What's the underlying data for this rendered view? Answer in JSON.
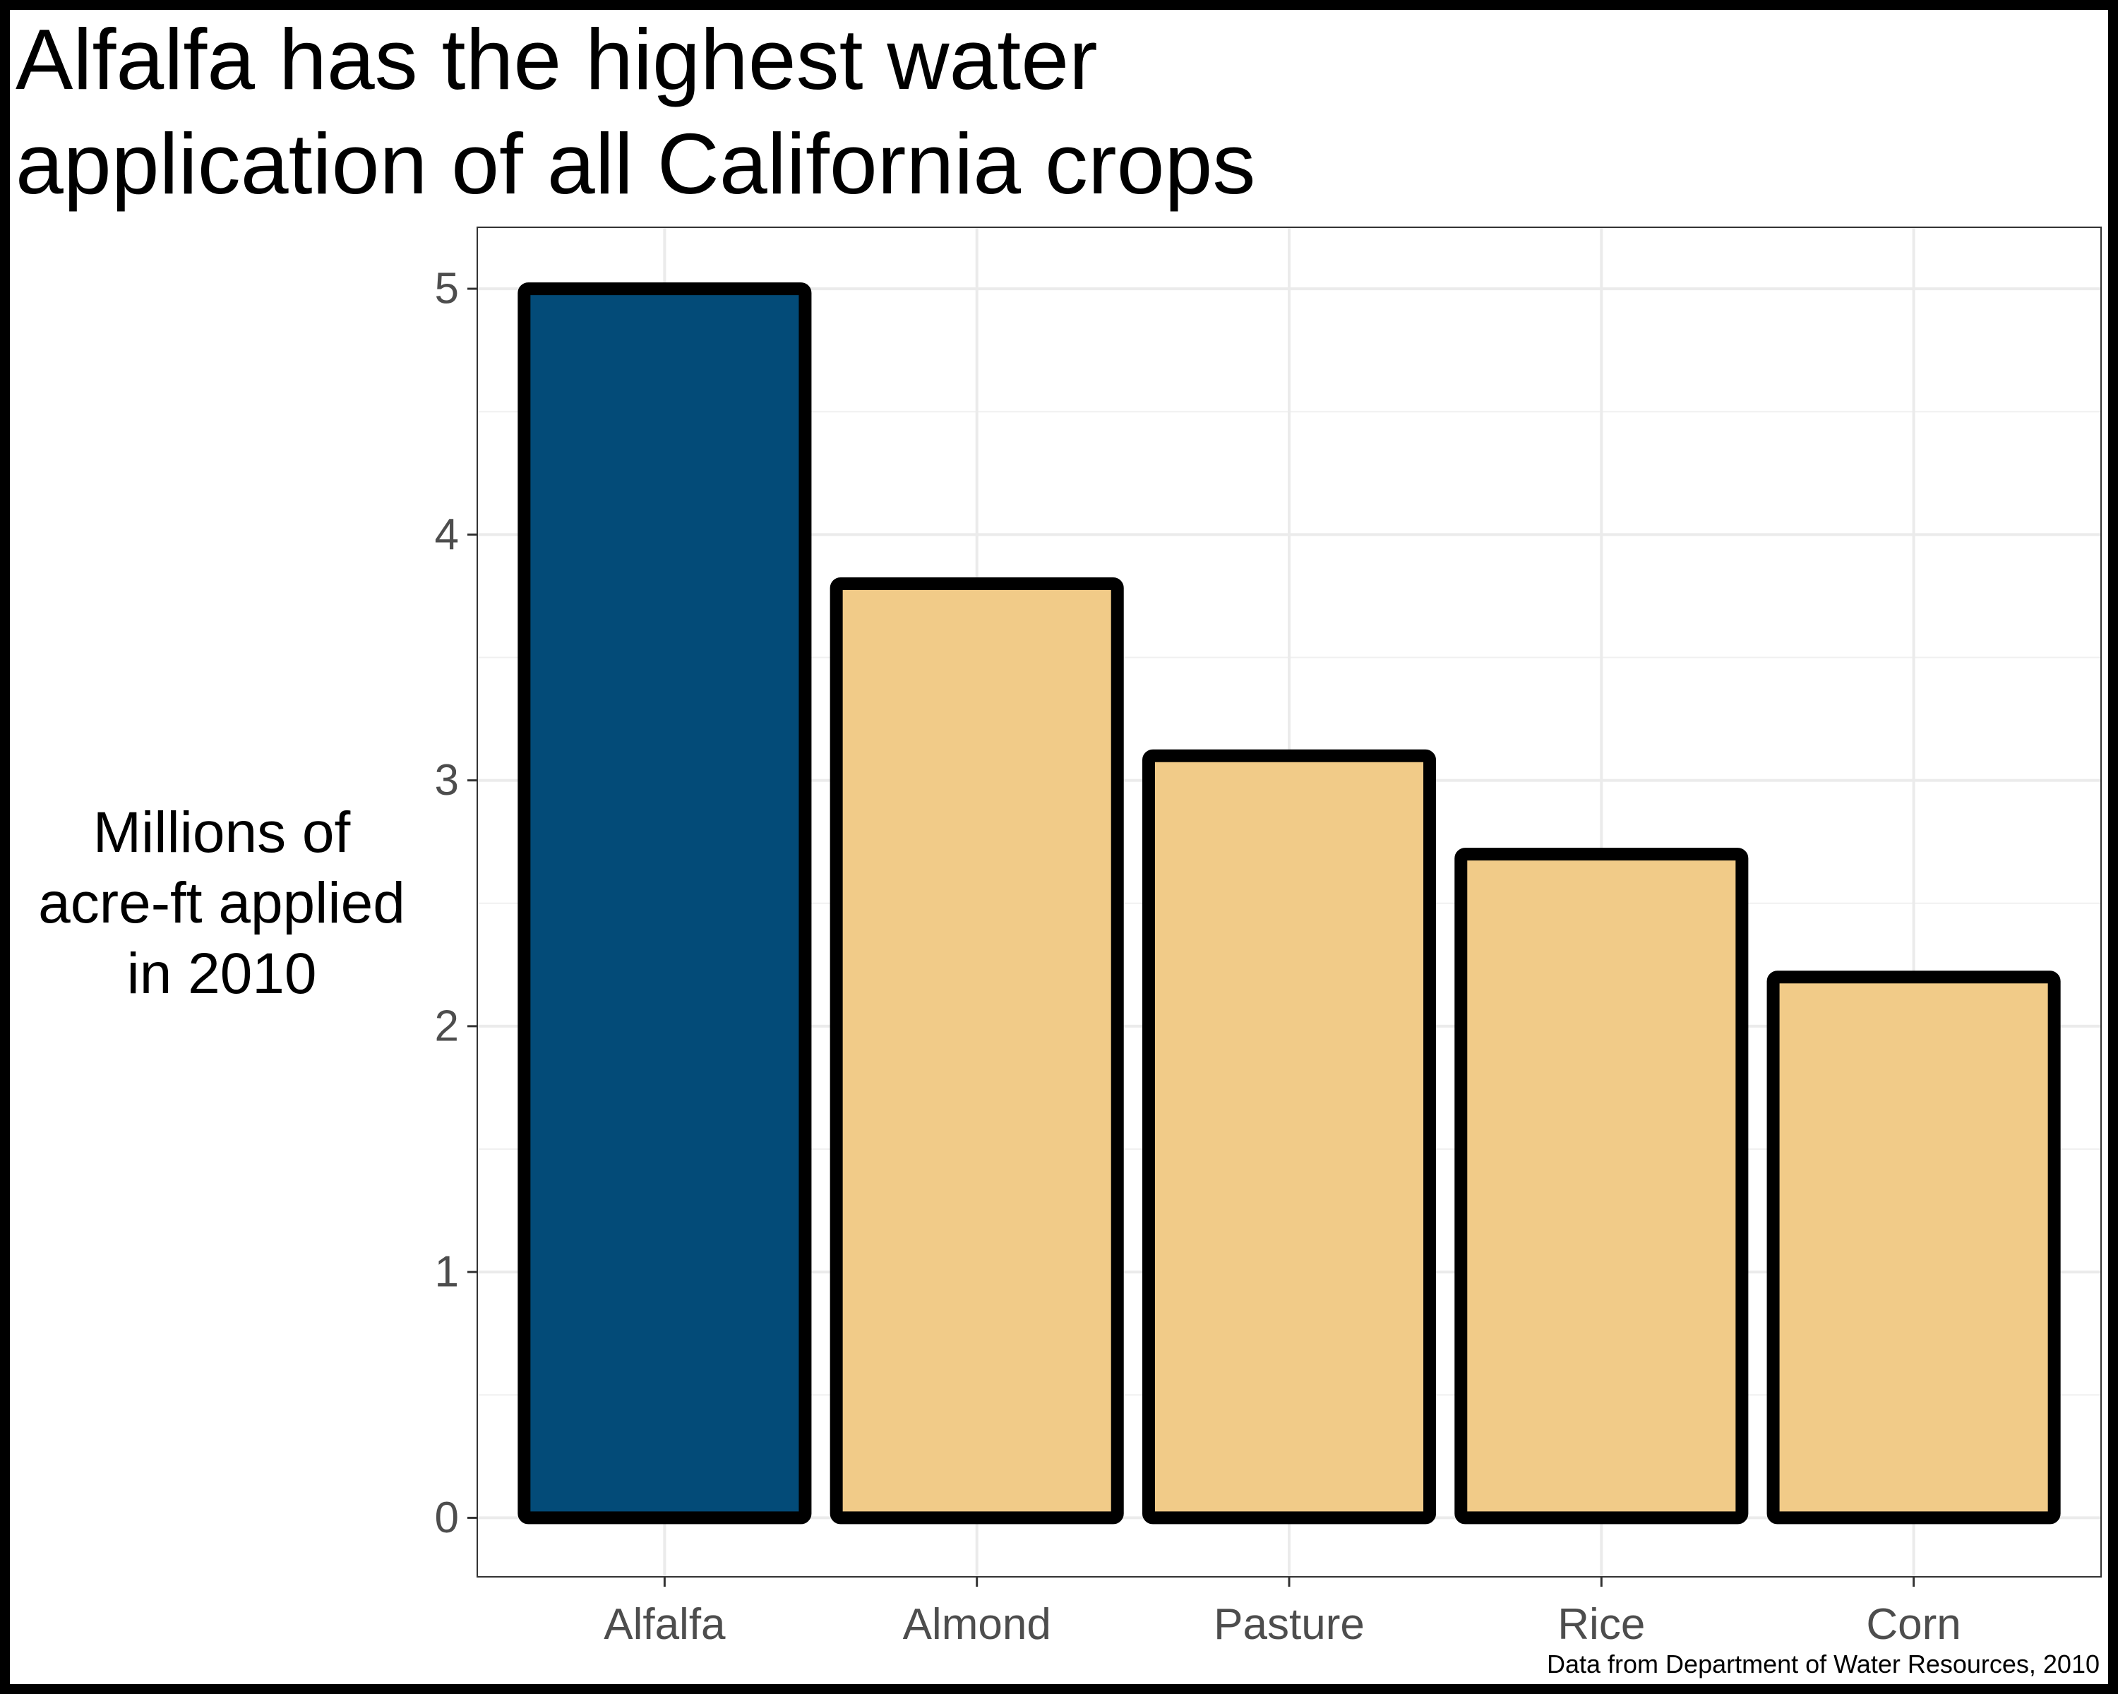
{
  "chart_data": {
    "type": "bar",
    "title": "Alfalfa has the highest water\napplication of all California crops",
    "xlabel": "",
    "ylabel": "Millions of\nacre-ft applied\nin 2010",
    "caption": "Data from Department of Water Resources, 2010",
    "categories": [
      "Alfalfa",
      "Almond",
      "Pasture",
      "Rice",
      "Corn"
    ],
    "values": [
      5.0,
      3.8,
      3.1,
      2.7,
      2.2
    ],
    "colors": [
      "#034b78",
      "#f1cb88",
      "#f1cb88",
      "#f1cb88",
      "#f1cb88"
    ],
    "bar_outline_color": "#000000",
    "yticks": [
      0,
      1,
      2,
      3,
      4,
      5
    ],
    "ylim": [
      -0.24,
      5.25
    ],
    "grid": true,
    "legend": "none"
  }
}
